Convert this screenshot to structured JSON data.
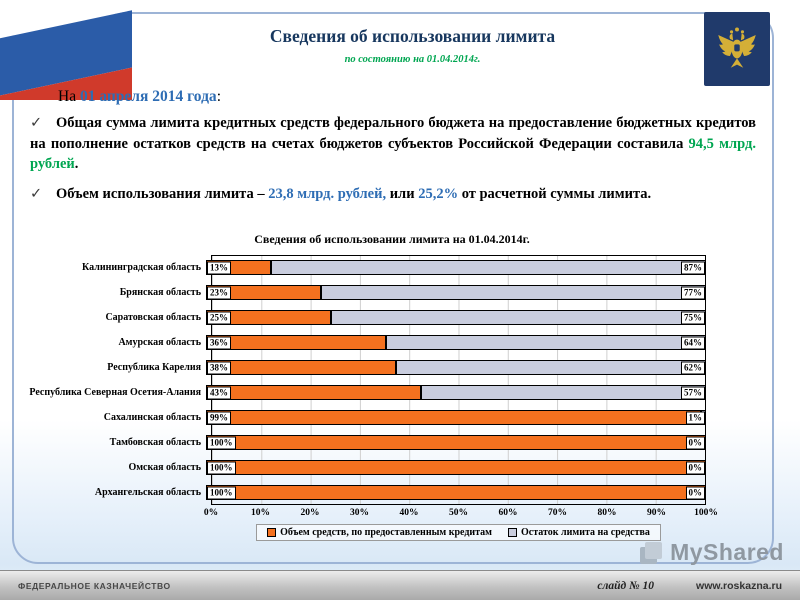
{
  "header": {
    "title": "Сведения об использовании лимита",
    "subtitle": "по состоянию на 01.04.2014г."
  },
  "body": {
    "check_mark": "✓",
    "intro_prefix": "На ",
    "intro_date": "01 апреля 2014 года",
    "intro_colon": ":",
    "bullet1": {
      "text_before": "Общая сумма лимита кредитных средств федерального бюджета на предоставление бюджетных кредитов на пополнение остатков средств на счетах бюджетов субъектов Российской Федерации составила ",
      "highlight": "94,5 млрд. рублей",
      "text_after": "."
    },
    "bullet2": {
      "text_before": "Объем использования лимита – ",
      "highlight1": "23,8 млрд. рублей,",
      "middle": " или ",
      "highlight2": "25,2%",
      "text_after": " от расчетной суммы лимита."
    }
  },
  "chart_data": {
    "type": "bar",
    "orientation": "horizontal",
    "stacked": true,
    "title": "Сведения об использовании лимита на 01.04.2014г.",
    "categories": [
      "Калининградская область",
      "Брянская область",
      "Саратовская область",
      "Амурская область",
      "Республика Карелия",
      "Республика Северная Осетия-Алания",
      "Сахалинская область",
      "Тамбовская область",
      "Омская область",
      "Архангельская область"
    ],
    "series": [
      {
        "name": "Объем средств, по предоставленным кредитам",
        "color": "#F4711F",
        "values": [
          13,
          23,
          25,
          36,
          38,
          43,
          99,
          100,
          100,
          100
        ]
      },
      {
        "name": "Остаток лимита на средства",
        "color": "#C9CDDE",
        "values": [
          87,
          77,
          75,
          64,
          62,
          57,
          1,
          0,
          0,
          0
        ]
      }
    ],
    "x_ticks": [
      "0%",
      "10%",
      "20%",
      "30%",
      "40%",
      "50%",
      "60%",
      "70%",
      "80%",
      "90%",
      "100%"
    ],
    "xlim": [
      0,
      100
    ],
    "grid": true,
    "legend_position": "bottom"
  },
  "watermark": {
    "text": "MyShared"
  },
  "footer": {
    "org": "ФЕДЕРАЛЬНОЕ КАЗНАЧЕЙСТВО",
    "slide": "слайд № 10",
    "url": "www.roskazna.ru"
  },
  "colors": {
    "title_navy": "#17375E",
    "accent_blue": "#2E6DB4",
    "accent_green": "#00A651",
    "bar_orange": "#F4711F",
    "bar_gray": "#C9CDDE"
  }
}
